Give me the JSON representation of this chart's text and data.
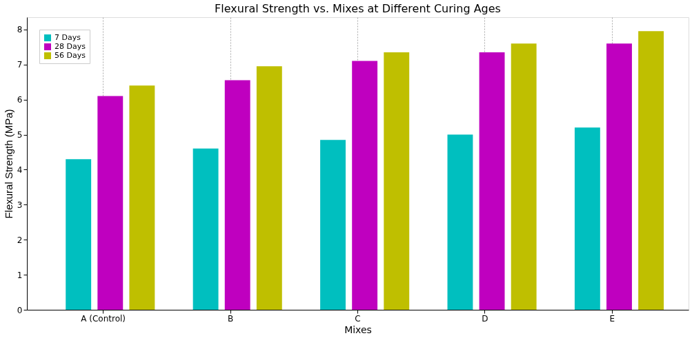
{
  "chart_data": {
    "type": "bar",
    "title": "Flexural Strength vs. Mixes at Different Curing Ages",
    "xlabel": "Mixes",
    "ylabel": "Flexural Strength (MPa)",
    "categories": [
      "A (Control)",
      "B",
      "C",
      "D",
      "E"
    ],
    "series": [
      {
        "name": "7 Days",
        "color": "#00bfbf",
        "values": [
          4.3,
          4.6,
          4.85,
          5.0,
          5.2
        ]
      },
      {
        "name": "28 Days",
        "color": "#bf00bf",
        "values": [
          6.1,
          6.55,
          7.1,
          7.35,
          7.6
        ]
      },
      {
        "name": "56 Days",
        "color": "#bfbf00",
        "values": [
          6.4,
          6.95,
          7.35,
          7.6,
          7.95
        ]
      }
    ],
    "ylim": [
      0,
      8.35
    ],
    "yticks": [
      0,
      1,
      2,
      3,
      4,
      5,
      6,
      7,
      8
    ],
    "grid": "x",
    "legend": "top left"
  }
}
